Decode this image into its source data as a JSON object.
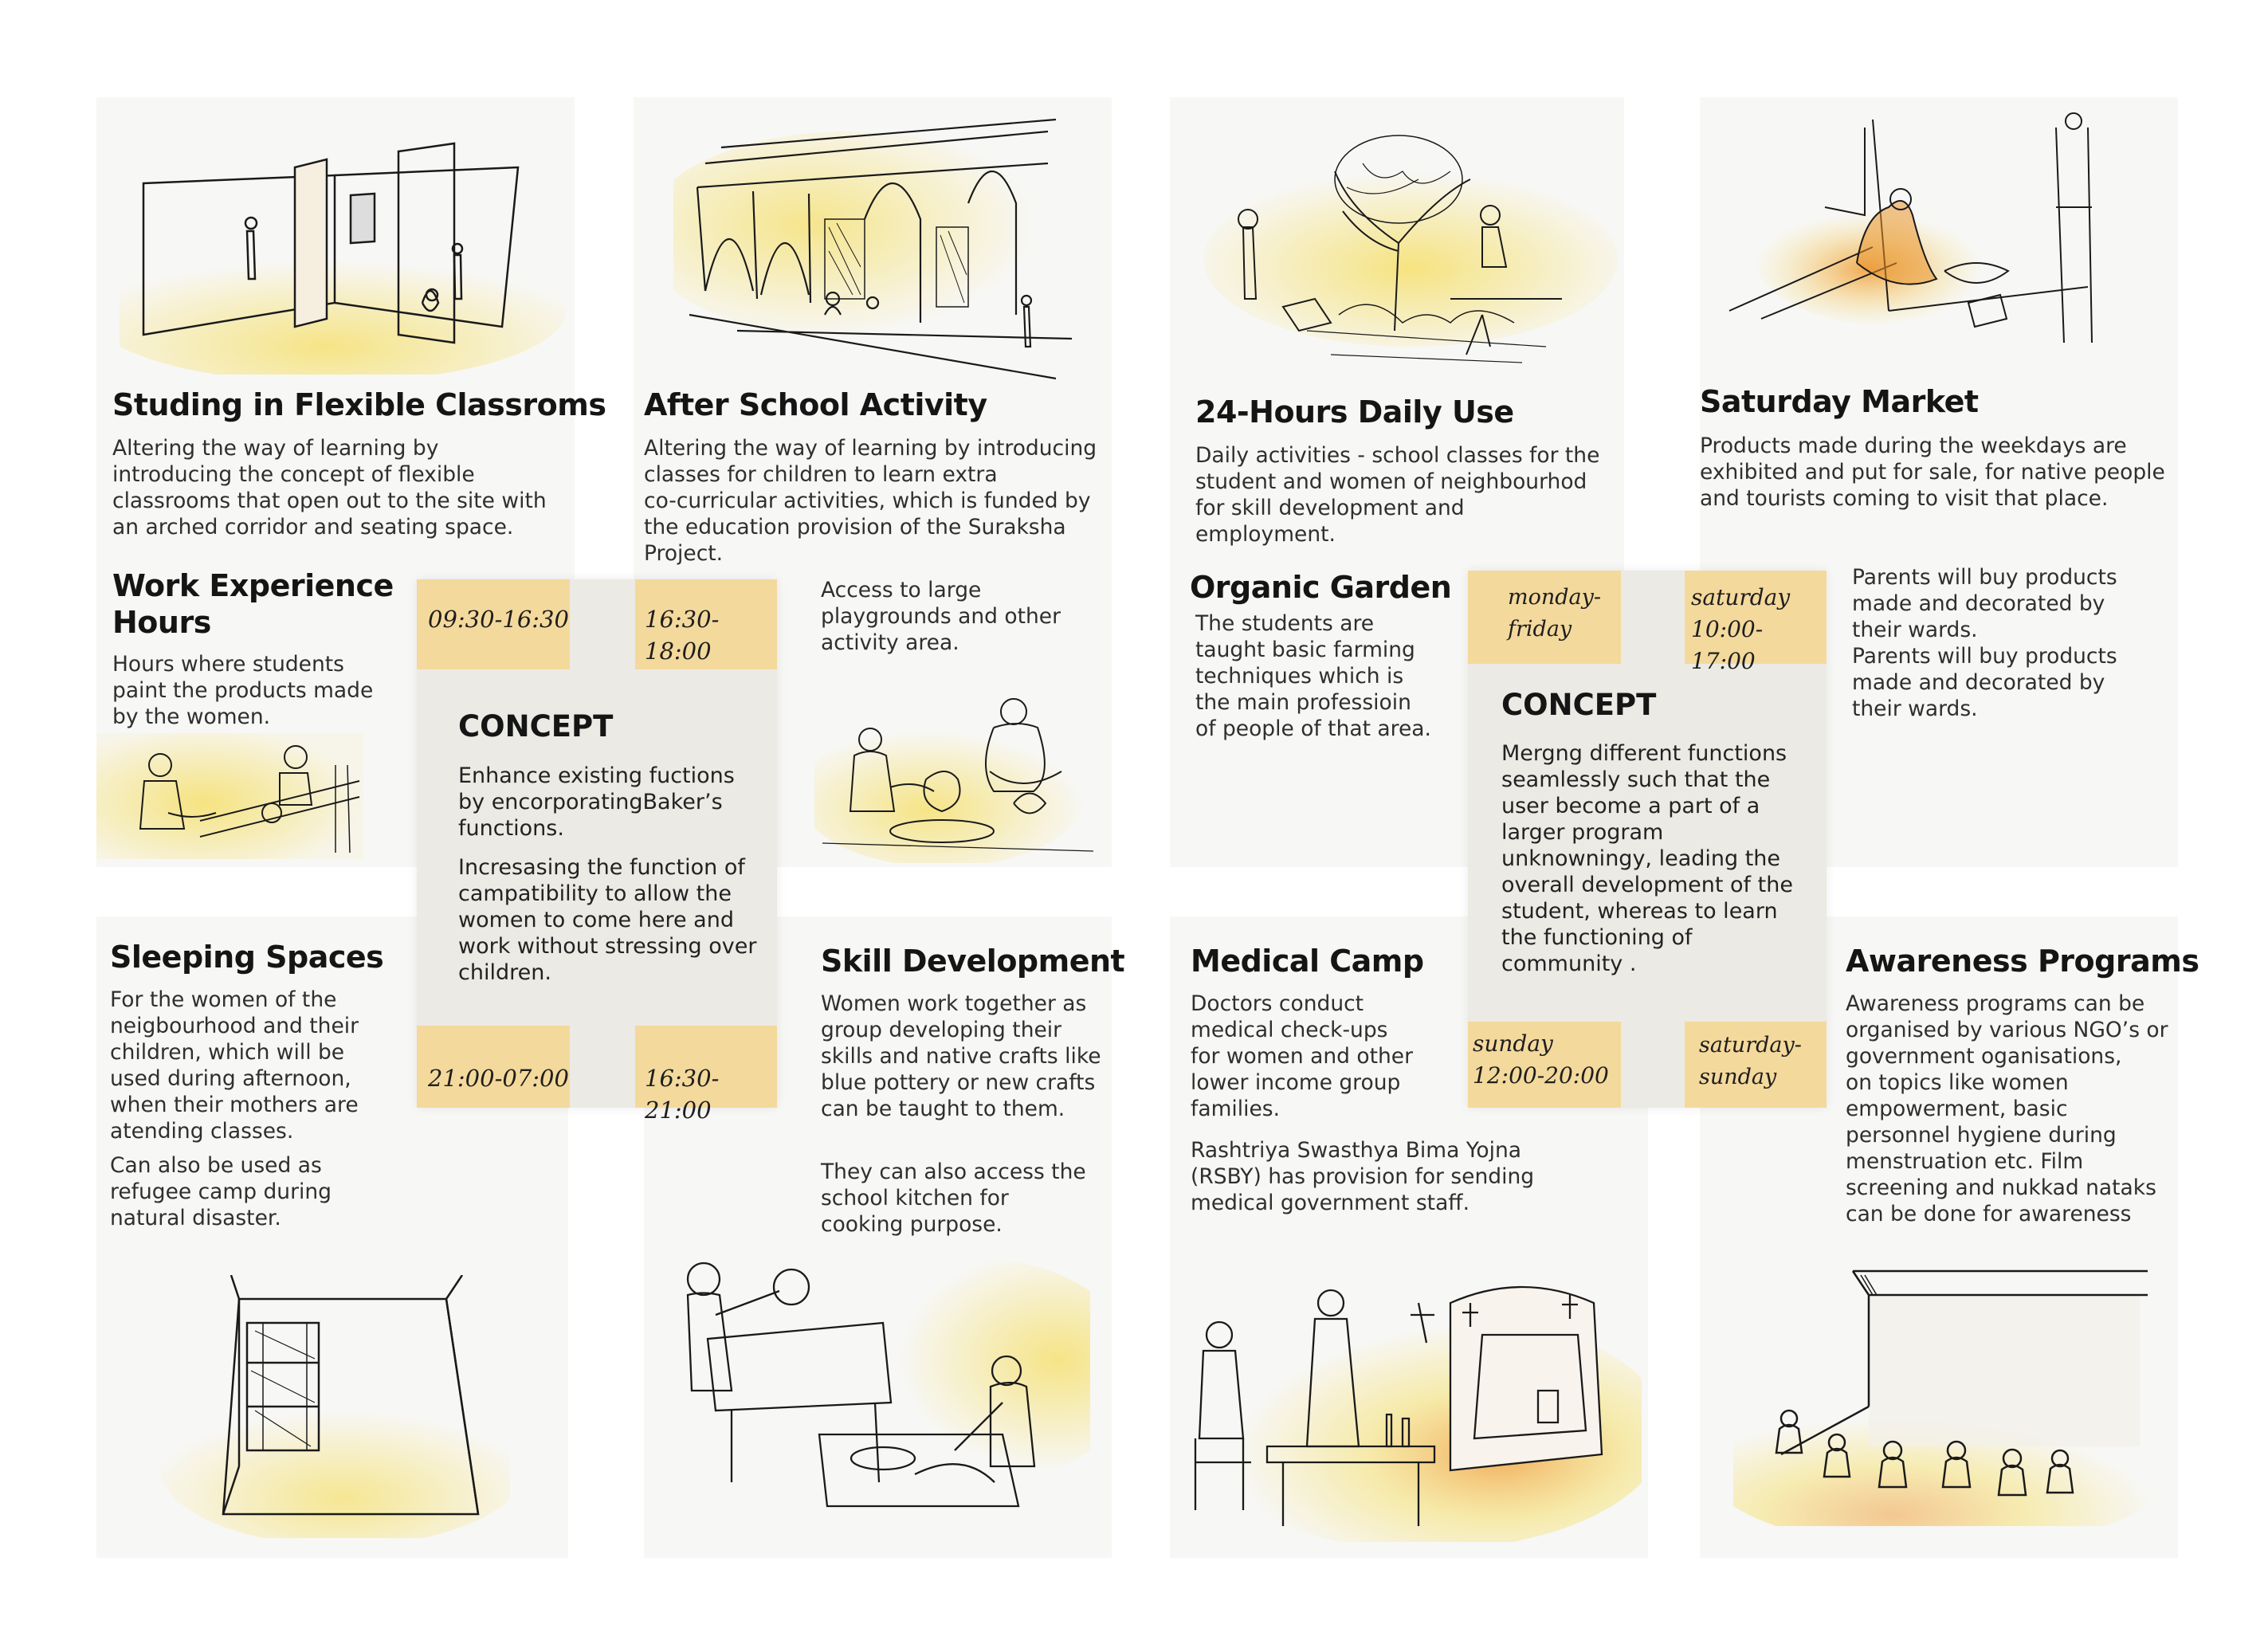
{
  "sections": {
    "flexible_classrooms": {
      "title": "Studing in Flexible Classroms",
      "text": "Altering the way of learning by\nintroducing the concept of flexible\nclassrooms that open out to the site with\nan arched corridor and seating space."
    },
    "after_school": {
      "title": "After School Activity",
      "text": "Altering the way of learning by introducing\nclasses for children to learn extra\nco-curricular activities, which is funded by\nthe education provision of the Suraksha\nProject.",
      "extra": "Access to large\nplaygrounds and other\nactivity area."
    },
    "daily_use": {
      "title": "24-Hours Daily Use",
      "text": "Daily activities - school classes for the\nstudent and women of neighbourhod\nfor skill development and\nemployment."
    },
    "saturday_market": {
      "title": "Saturday Market",
      "text": "Products made during the weekdays are\nexhibited and put for sale, for native people\nand tourists coming to visit that place.",
      "extra": "Parents will buy products\nmade and decorated by\ntheir wards.\nParents will buy products\nmade and decorated by\ntheir wards."
    },
    "work_experience": {
      "title": "Work Experience\nHours",
      "text": "Hours where students\npaint the products made\nby the women."
    },
    "organic_garden": {
      "title": "Organic Garden",
      "text": "The students are\ntaught basic farming\ntechniques which is\nthe main professioin\nof people of that area."
    },
    "sleeping_spaces": {
      "title": "Sleeping Spaces",
      "text": "For the women of the\nneigbourhood and their\nchildren, which will be\nused during afternoon,\nwhen their mothers are\natending classes.",
      "extra": "Can also be used as\nrefugee camp during\nnatural  disaster."
    },
    "skill_development": {
      "title": "Skill Development",
      "text": "Women work together as\ngroup developing their\nskills and native crafts like\nblue pottery or new crafts\ncan be taught  to them.",
      "extra": "They can also access the\nschool kitchen for\ncooking purpose."
    },
    "medical_camp": {
      "title": "Medical Camp",
      "text": "Doctors conduct\nmedical check-ups\nfor women and other\nlower income group\nfamilies.",
      "extra": "Rashtriya Swasthya Bima Yojna\n(RSBY) has provision for sending\nmedical government staff."
    },
    "awareness": {
      "title": "Awareness Programs",
      "text": "Awareness programs can be\norganised by various NGO’s or\ngovernment oganisations,\non topics like women\nempowerment, basic\npersonnel hygiene during\nmenstruation etc. Film\nscreening and nukkad nataks\ncan be done for awareness"
    }
  },
  "concept_left": {
    "title": "CONCEPT",
    "para1": "Enhance existing fuctions\nby encorporatingBaker’s\nfunctions.",
    "para2": "Incresasing the function of\ncampatibility to allow the\nwomen to come here and\nwork without stressing over\nchildren.",
    "times": [
      "09:30-16:30",
      "16:30-18:00",
      "21:00-07:00",
      "16:30-21:00"
    ]
  },
  "concept_right": {
    "title": "CONCEPT",
    "para": "Mergng different functions\nseamlessly such that the\nuser become a part of a\nlarger program\nunknowningy, leading the\noverall development of the\nstudent, whereas to learn\nthe functioning of\ncommunity .",
    "tags": [
      "monday-\nfriday",
      "saturday\n10:00-17:00",
      "sunday\n12:00-20:00",
      "saturday-\nsunday"
    ]
  },
  "colors": {
    "panel_bg": "#f7f7f5",
    "tag_bg": "#f4d99c",
    "wash_yellow": "#f6e27a",
    "wash_orange": "#f0a040",
    "ink": "#1a1a1a"
  }
}
